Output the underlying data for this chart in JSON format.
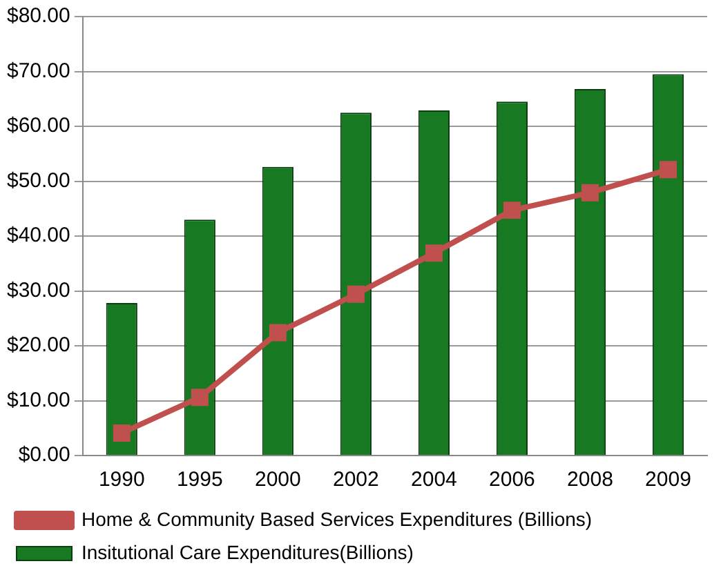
{
  "chart_data": {
    "type": "bar",
    "categories": [
      "1990",
      "1995",
      "2000",
      "2002",
      "2004",
      "2006",
      "2008",
      "2009"
    ],
    "series": [
      {
        "name": "Insitutional Care Expenditures(Billions)",
        "color": "#177a22",
        "values": [
          27.8,
          43.0,
          52.6,
          62.5,
          62.9,
          64.5,
          66.8,
          69.5
        ]
      },
      {
        "name": "Home & Community Based Services Expenditures (Billions)",
        "type": "line",
        "color": "#c0504d",
        "marker": "square",
        "values": [
          4.1,
          10.6,
          22.4,
          29.4,
          36.9,
          44.7,
          47.9,
          52.1
        ]
      }
    ],
    "ylim": [
      0,
      80
    ],
    "yticks": [
      {
        "value": 0,
        "label": "$0.00"
      },
      {
        "value": 10,
        "label": "$10.00"
      },
      {
        "value": 20,
        "label": "$20.00"
      },
      {
        "value": 30,
        "label": "$30.00"
      },
      {
        "value": 40,
        "label": "$40.00"
      },
      {
        "value": 50,
        "label": "$50.00"
      },
      {
        "value": 60,
        "label": "$60.00"
      },
      {
        "value": 70,
        "label": "$70.00"
      },
      {
        "value": 80,
        "label": "$80.00"
      }
    ],
    "grid": "y",
    "legend": "bottom"
  }
}
